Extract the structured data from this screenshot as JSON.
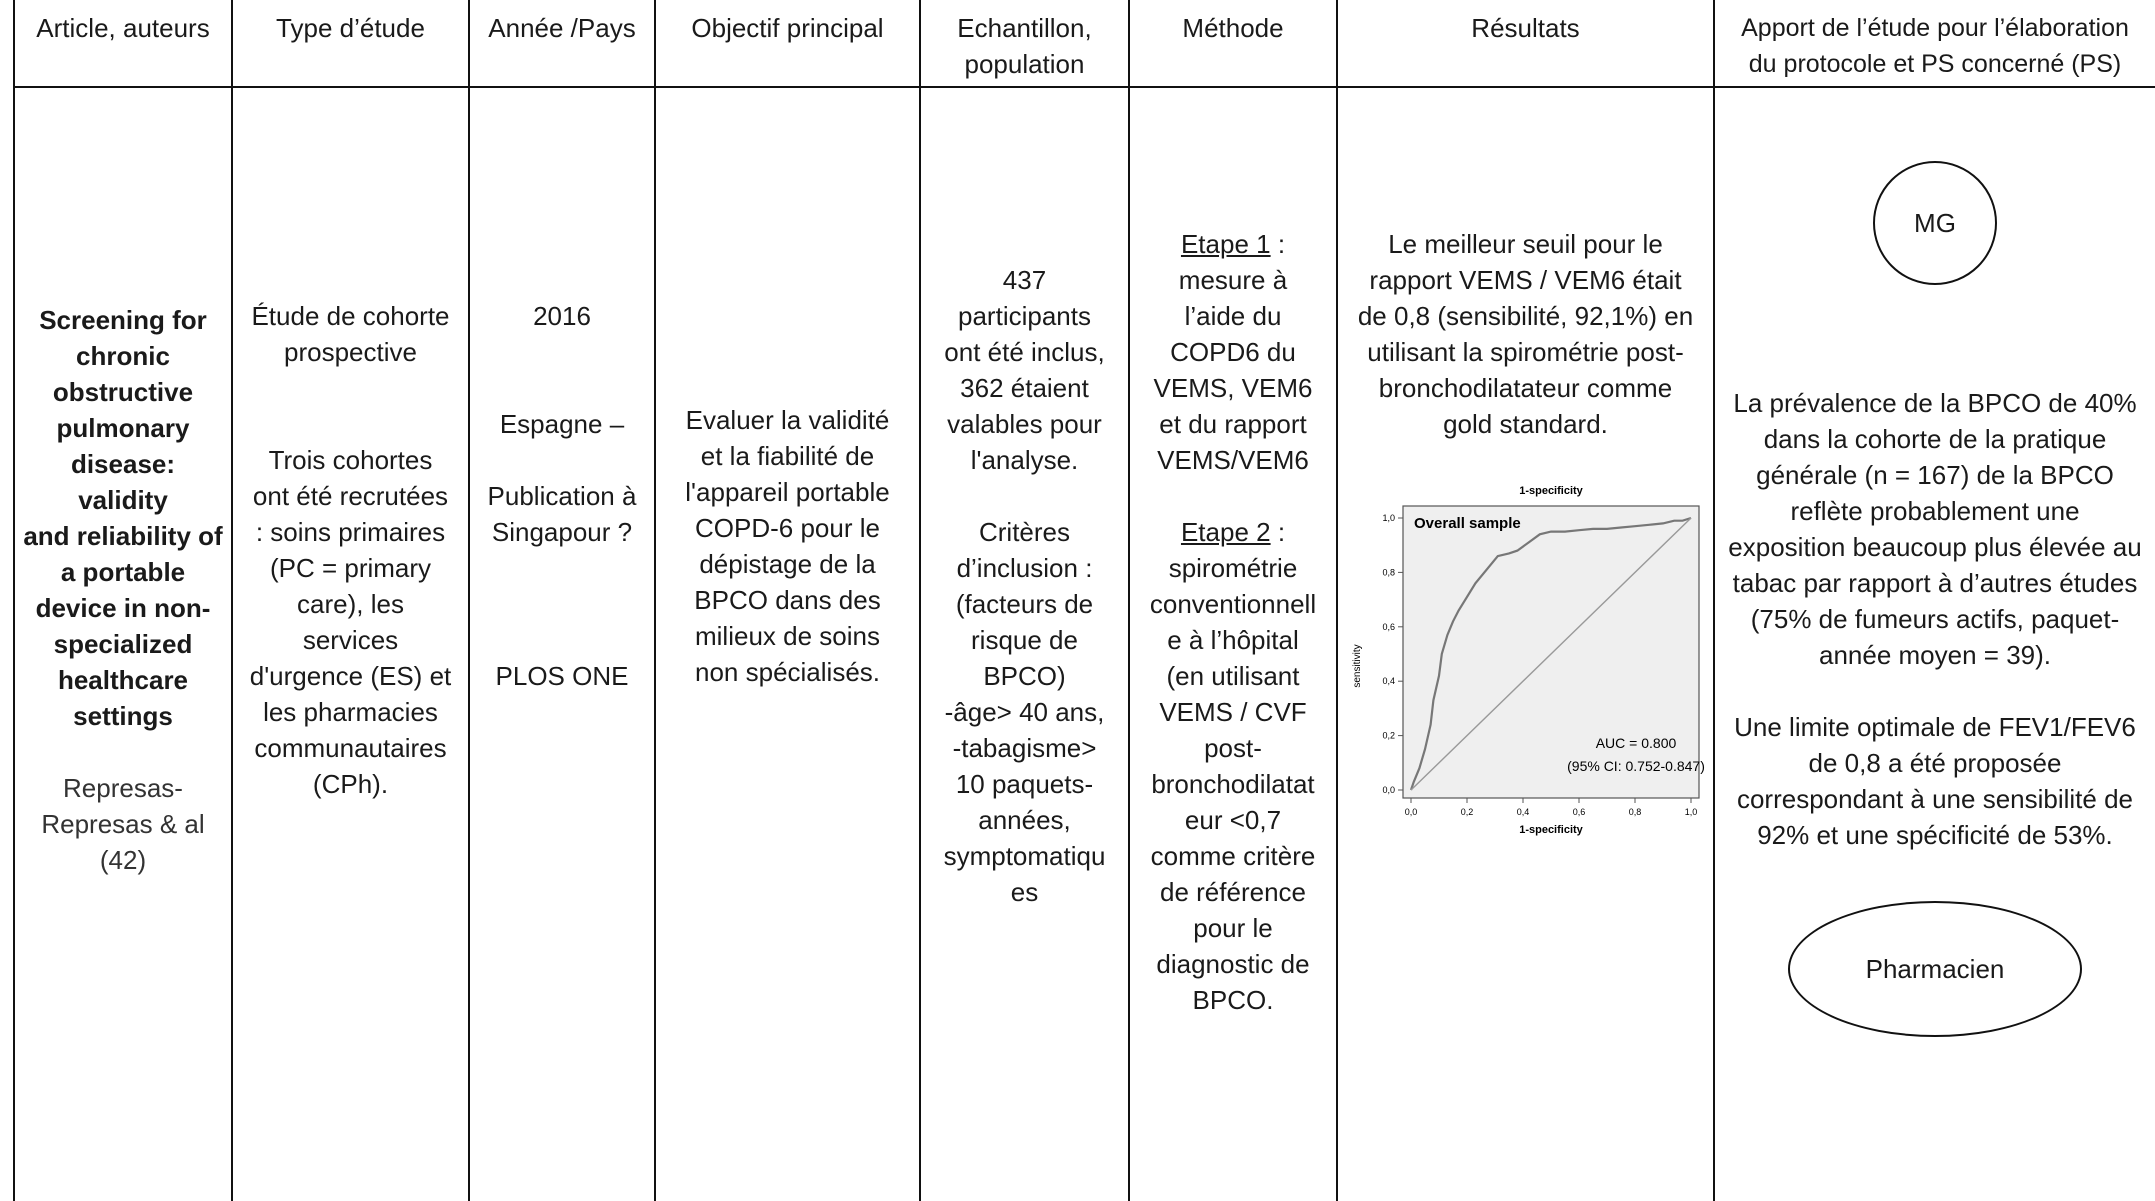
{
  "headers": {
    "article": "Article, auteurs",
    "type": "Type d’étude",
    "annee": "Année /Pays",
    "objectif": "Objectif principal",
    "echantillon_1": "Echantillon,",
    "echantillon_2": "population",
    "methode": "Méthode",
    "resultats": "Résultats",
    "apport_1": "Apport de l’étude pour l’élaboration",
    "apport_2": "du protocole et PS concerné (PS)"
  },
  "row": {
    "article": {
      "title_lines": [
        "Screening for",
        "chronic",
        "obstructive",
        "pulmonary",
        "disease: validity",
        "and reliability of",
        "a portable",
        "device in non-",
        "specialized",
        "healthcare",
        "settings"
      ],
      "author_lines": [
        "Represas-",
        "Represas & al",
        "(42)"
      ]
    },
    "type": {
      "lines_a": [
        "Étude de cohorte",
        "prospective"
      ],
      "lines_b": [
        "Trois cohortes",
        "ont été recrutées",
        ": soins primaires",
        "(PC = primary",
        "care), les",
        "services",
        "d'urgence (ES) et",
        "les pharmacies",
        "communautaires",
        "(CPh)."
      ]
    },
    "annee": {
      "year": "2016",
      "country": "Espagne –",
      "pub_lines": [
        "Publication à",
        "Singapour ?"
      ],
      "journal": "PLOS ONE"
    },
    "objectif": {
      "lines": [
        "Evaluer la validité",
        "et la fiabilité de",
        "l'appareil portable",
        "COPD-6 pour le",
        "dépistage de la",
        "BPCO dans des",
        "milieux de soins",
        "non spécialisés."
      ]
    },
    "echantillon": {
      "lines_a": [
        "437",
        "participants",
        "ont été inclus,",
        "362 étaient",
        "valables pour",
        "l'analyse."
      ],
      "lines_b": [
        "Critères",
        "d’inclusion :",
        "(facteurs de",
        "risque de",
        "BPCO)",
        "-âge> 40 ans,",
        "-tabagisme>",
        "10 paquets-",
        "années,",
        "symptomatiqu",
        "es"
      ]
    },
    "methode": {
      "etape1_label": "Etape 1",
      "etape1_colon": " :",
      "etape1_lines": [
        "mesure à",
        "l’aide du",
        "COPD6 du",
        "VEMS, VEM6",
        "et du rapport",
        "VEMS/VEM6"
      ],
      "etape2_label": "Etape 2",
      "etape2_colon": " :",
      "etape2_lines": [
        "spirométrie",
        "conventionnell",
        "e à l’hôpital",
        "(en utilisant",
        "VEMS / CVF",
        "post-",
        "bronchodilatat",
        "eur <0,7",
        "comme critère",
        "de référence",
        "pour le",
        "diagnostic de",
        "BPCO."
      ]
    },
    "resultats": {
      "lines": [
        "Le meilleur seuil pour le",
        "rapport VEMS / VEM6 était",
        "de 0,8 (sensibilité, 92,1%) en",
        "utilisant la spirométrie post-",
        "bronchodilatateur comme",
        "gold standard."
      ]
    },
    "apport": {
      "mg": "MG",
      "lines_a": [
        "La prévalence de la BPCO de 40%",
        "dans la cohorte de la pratique",
        "générale (n = 167) de la BPCO",
        "reflète probablement une",
        "exposition beaucoup plus élevée au",
        "tabac par rapport à d’autres études",
        "(75% de fumeurs actifs, paquet-",
        "année moyen = 39)."
      ],
      "lines_b": [
        "Une limite optimale de FEV1/FEV6",
        "de 0,8 a été proposée",
        "correspondant à une sensibilité de",
        "92% et une spécificité de 53%."
      ],
      "pharmacien": "Pharmacien"
    }
  },
  "chart_data": {
    "type": "line",
    "title": "Overall sample",
    "top_label": "1-specificity",
    "xlabel": "1-specificity",
    "ylabel": "sensitivity",
    "xlim": [
      0,
      1
    ],
    "ylim": [
      0,
      1
    ],
    "xticks": [
      "0,0",
      "0,2",
      "0,4",
      "0,6",
      "0,8",
      "1,0"
    ],
    "yticks": [
      "0,0",
      "0,2",
      "0,4",
      "0,6",
      "0,8",
      "1,0"
    ],
    "auc_label": "AUC = 0.800",
    "ci_label": "(95% CI: 0.752-0.847)",
    "series": [
      {
        "x": [
          0,
          0.01,
          0.03,
          0.05,
          0.07,
          0.08,
          0.1,
          0.11,
          0.13,
          0.15,
          0.17,
          0.2,
          0.23,
          0.27,
          0.31,
          0.35,
          0.38,
          0.42,
          0.46,
          0.5,
          0.55,
          0.6,
          0.65,
          0.7,
          0.75,
          0.8,
          0.85,
          0.9,
          0.94,
          0.97,
          1.0
        ],
        "y": [
          0,
          0.03,
          0.08,
          0.15,
          0.24,
          0.33,
          0.42,
          0.5,
          0.57,
          0.62,
          0.66,
          0.71,
          0.76,
          0.81,
          0.86,
          0.87,
          0.88,
          0.91,
          0.94,
          0.95,
          0.95,
          0.955,
          0.96,
          0.96,
          0.965,
          0.97,
          0.975,
          0.98,
          0.99,
          0.99,
          1.0
        ]
      },
      {
        "x": [
          0,
          1
        ],
        "y": [
          0,
          1
        ]
      }
    ]
  }
}
